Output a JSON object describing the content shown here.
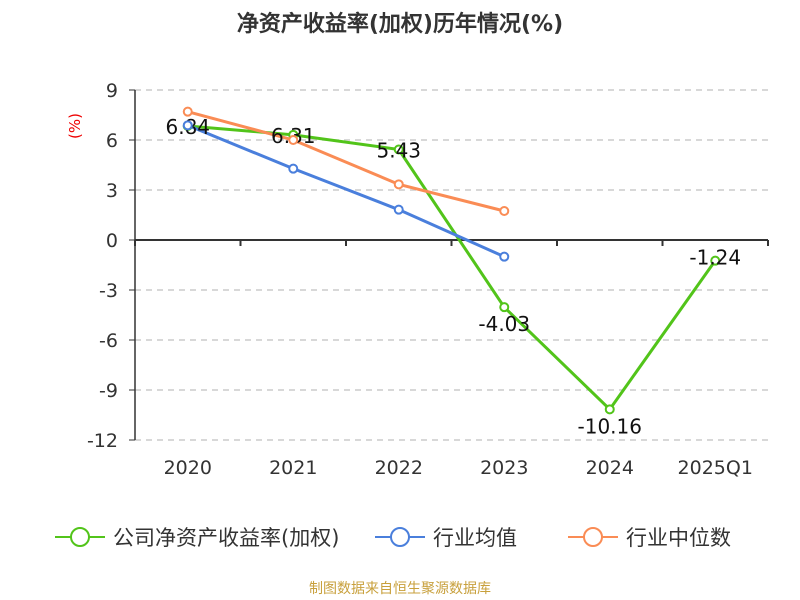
{
  "chart_data": {
    "type": "line",
    "title": "净资产收益率(加权)历年情况(%)",
    "ylabel": "(%)",
    "xlabel": "",
    "categories": [
      "2020",
      "2021",
      "2022",
      "2023",
      "2024",
      "2025Q1"
    ],
    "ylim": [
      -12,
      9
    ],
    "yticks": [
      9,
      6,
      3,
      0,
      -3,
      -6,
      -9,
      -12
    ],
    "grid": true,
    "legend_position": "bottom",
    "series": [
      {
        "name": "公司净资产收益率(加权)",
        "color": "#52c41a",
        "values": [
          6.84,
          6.31,
          5.43,
          -4.03,
          -10.16,
          -1.24
        ],
        "labels": [
          "6.84",
          "6.31",
          "5.43",
          "-4.03",
          "-10.16",
          "-1.24"
        ]
      },
      {
        "name": "行业均值",
        "color": "#4a7fdc",
        "values": [
          6.88,
          4.28,
          1.82,
          -1.0,
          null,
          null
        ]
      },
      {
        "name": "行业中位数",
        "color": "#fa8c55",
        "values": [
          7.7,
          6.0,
          3.34,
          1.74,
          null,
          null
        ]
      }
    ]
  },
  "footer": "制图数据来自恒生聚源数据库"
}
